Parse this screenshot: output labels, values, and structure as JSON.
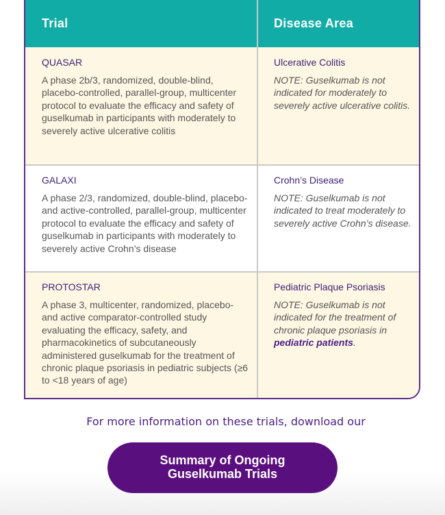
{
  "table": {
    "headers": {
      "trial": "Trial",
      "disease_area": "Disease Area"
    },
    "rows": [
      {
        "trial": "QUASAR",
        "description": "A phase 2b/3, randomized, double-blind, placebo-controlled, parallel-group, multicenter protocol to evaluate the efficacy and safety of guselkumab in participants with moderately to severely active ulcerative colitis",
        "disease_area": "Ulcerative Colitis",
        "note": "NOTE: Guselkumab is not indicated for moderately to severely active ulcerative colitis."
      },
      {
        "trial": "GALAXI",
        "description": "A phase 2/3, randomized, double-blind, placebo-and active-controlled, parallel-group, multicenter protocol to evaluate the efficacy and safety of guselkumab in participants with moderately to severely active Crohn’s disease",
        "disease_area": "Crohn’s Disease",
        "note": "NOTE: Guselkumab is not indicated to treat moderately to severely active Crohn’s disease."
      },
      {
        "trial": "PROTOSTAR",
        "description": "A phase 3, multicenter, randomized, placebo- and active comparator-controlled study evaluating the efficacy, safety, and pharmacokinetics of subcutaneously administered guselkumab for the treatment of chronic plaque psoriasis in pediatric subjects (≥6 to <18 years of age)",
        "disease_area": "Pediatric Plaque Psoriasis",
        "note_prefix": "NOTE: Guselkumab is not indicated for the treatment of chronic plaque psoriasis in ",
        "note_emphasis": "pediatric patients",
        "note_suffix": "."
      }
    ]
  },
  "footer": {
    "more_info": "For more information on these trials, download our",
    "button_line1": "Summary of Ongoing",
    "button_line2": "Guselkumab Trials"
  },
  "colors": {
    "header_teal": "#12aca7",
    "border_purple": "#5b2a86",
    "button_purple": "#5a0f7e",
    "cream": "#fef7e4"
  }
}
